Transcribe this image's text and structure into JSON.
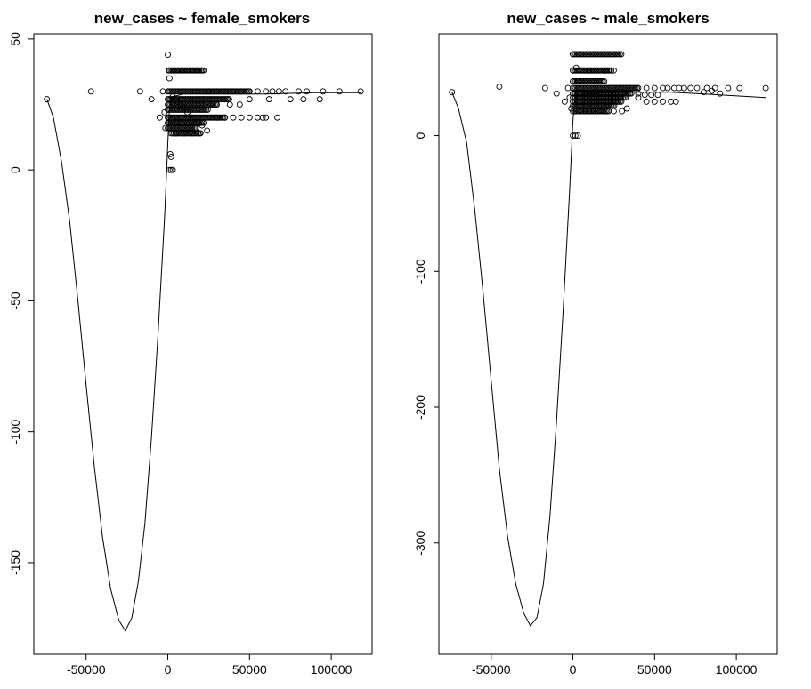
{
  "chart_data": [
    {
      "type": "scatter",
      "title": "new_cases ~ female_smokers",
      "xlabel": "",
      "ylabel": "",
      "xlim": [
        -82000,
        125000
      ],
      "ylim": [
        -185,
        52
      ],
      "xticks": [
        -50000,
        0,
        50000,
        100000
      ],
      "xtick_labels": [
        "-50000",
        "0",
        "50000",
        "100000"
      ],
      "yticks": [
        50,
        0,
        -50,
        -100,
        -150
      ],
      "ytick_labels": [
        "50",
        "0",
        "-50",
        "-100",
        "-150"
      ],
      "grid": false,
      "legend": "none",
      "points": [
        [
          -74000,
          27
        ],
        [
          -47000,
          30
        ],
        [
          -17000,
          30
        ],
        [
          -10000,
          27
        ],
        [
          -5000,
          20
        ],
        [
          -3000,
          30
        ],
        [
          -2000,
          22
        ],
        [
          -1500,
          16
        ],
        [
          0,
          44
        ],
        [
          500,
          38
        ],
        [
          1000,
          35
        ],
        [
          1500,
          6
        ],
        [
          2000,
          5
        ],
        [
          1000,
          0
        ],
        [
          2000,
          0
        ],
        [
          3000,
          0
        ],
        [
          3000,
          38
        ],
        [
          6000,
          38
        ],
        [
          9000,
          38
        ],
        [
          12000,
          38
        ],
        [
          15000,
          38
        ],
        [
          18000,
          38
        ],
        [
          21000,
          38
        ],
        [
          25000,
          30
        ],
        [
          30000,
          30
        ],
        [
          35000,
          30
        ],
        [
          40000,
          30
        ],
        [
          45000,
          30
        ],
        [
          50000,
          30
        ],
        [
          55000,
          30
        ],
        [
          60000,
          30
        ],
        [
          64000,
          30
        ],
        [
          68000,
          30
        ],
        [
          72000,
          30
        ],
        [
          80000,
          30
        ],
        [
          85000,
          30
        ],
        [
          95000,
          30
        ],
        [
          105000,
          30
        ],
        [
          118000,
          30
        ],
        [
          62000,
          27
        ],
        [
          75000,
          27
        ],
        [
          83000,
          27
        ],
        [
          93000,
          27
        ],
        [
          30000,
          25
        ],
        [
          38000,
          25
        ],
        [
          44000,
          25
        ],
        [
          50000,
          27
        ],
        [
          30000,
          20
        ],
        [
          35000,
          20
        ],
        [
          40000,
          20
        ],
        [
          45000,
          20
        ],
        [
          50000,
          20
        ],
        [
          55000,
          20
        ],
        [
          58000,
          20
        ],
        [
          60000,
          20
        ],
        [
          67000,
          20
        ],
        [
          3000,
          28
        ],
        [
          6000,
          26
        ],
        [
          9000,
          24
        ],
        [
          12000,
          22
        ],
        [
          15000,
          20
        ],
        [
          18000,
          18
        ],
        [
          21000,
          17
        ],
        [
          24000,
          15
        ],
        [
          5000,
          14
        ],
        [
          10000,
          14
        ],
        [
          15000,
          14
        ],
        [
          20000,
          14
        ]
      ],
      "dense_bands": [
        {
          "y": 30,
          "x_from": 0,
          "x_to": 50000
        },
        {
          "y": 27,
          "x_from": 0,
          "x_to": 38000
        },
        {
          "y": 25,
          "x_from": 0,
          "x_to": 30000
        },
        {
          "y": 23,
          "x_from": 0,
          "x_to": 25000
        },
        {
          "y": 20,
          "x_from": 0,
          "x_to": 35000
        },
        {
          "y": 18,
          "x_from": 0,
          "x_to": 22000
        },
        {
          "y": 16,
          "x_from": 0,
          "x_to": 18000
        },
        {
          "y": 14,
          "x_from": 2000,
          "x_to": 20000
        },
        {
          "y": 38,
          "x_from": 1000,
          "x_to": 22000
        }
      ],
      "fit_curve": [
        [
          -74000,
          27
        ],
        [
          -70000,
          20
        ],
        [
          -65000,
          3
        ],
        [
          -60000,
          -20
        ],
        [
          -55000,
          -50
        ],
        [
          -50000,
          -82
        ],
        [
          -45000,
          -113
        ],
        [
          -40000,
          -140
        ],
        [
          -35000,
          -160
        ],
        [
          -30000,
          -172
        ],
        [
          -26000,
          -176
        ],
        [
          -22000,
          -171
        ],
        [
          -18000,
          -157
        ],
        [
          -14000,
          -135
        ],
        [
          -10000,
          -102
        ],
        [
          -6000,
          -63
        ],
        [
          -2000,
          -18
        ],
        [
          0,
          10
        ],
        [
          1000,
          24
        ],
        [
          3000,
          28
        ],
        [
          10000,
          29
        ],
        [
          30000,
          29
        ],
        [
          60000,
          29
        ],
        [
          90000,
          29.5
        ],
        [
          118000,
          29.5
        ]
      ]
    },
    {
      "type": "scatter",
      "title": "new_cases ~ male_smokers",
      "xlabel": "",
      "ylabel": "",
      "xlim": [
        -82000,
        125000
      ],
      "ylim": [
        -382,
        75
      ],
      "xticks": [
        -50000,
        0,
        50000,
        100000
      ],
      "xtick_labels": [
        "-50000",
        "0",
        "50000",
        "100000"
      ],
      "yticks": [
        0,
        -100,
        -200,
        -300
      ],
      "ytick_labels": [
        "0",
        "-100",
        "-200",
        "-300"
      ],
      "grid": false,
      "legend": "none",
      "points": [
        [
          -74000,
          32
        ],
        [
          -45000,
          36
        ],
        [
          -17000,
          35
        ],
        [
          -10000,
          31
        ],
        [
          -5000,
          25
        ],
        [
          -3000,
          35
        ],
        [
          -2000,
          28
        ],
        [
          -1000,
          20
        ],
        [
          0,
          60
        ],
        [
          0,
          0
        ],
        [
          1500,
          0
        ],
        [
          3000,
          0
        ],
        [
          2000,
          50
        ],
        [
          3000,
          40
        ],
        [
          40000,
          35
        ],
        [
          45000,
          35
        ],
        [
          50000,
          35
        ],
        [
          55000,
          35
        ],
        [
          58000,
          35
        ],
        [
          62000,
          35
        ],
        [
          65000,
          35
        ],
        [
          68000,
          35
        ],
        [
          72000,
          35
        ],
        [
          76000,
          35
        ],
        [
          82000,
          35
        ],
        [
          87000,
          35
        ],
        [
          95000,
          35
        ],
        [
          102000,
          35
        ],
        [
          118000,
          35
        ],
        [
          80000,
          32
        ],
        [
          85000,
          33
        ],
        [
          90000,
          31
        ],
        [
          40000,
          28
        ],
        [
          45000,
          25
        ],
        [
          50000,
          25
        ],
        [
          55000,
          25
        ],
        [
          60000,
          25
        ],
        [
          63000,
          25
        ],
        [
          40000,
          31
        ],
        [
          44000,
          30
        ],
        [
          48000,
          30
        ],
        [
          52000,
          30
        ],
        [
          10000,
          48
        ],
        [
          20000,
          48
        ],
        [
          25000,
          48
        ],
        [
          5000,
          18
        ],
        [
          10000,
          18
        ],
        [
          15000,
          18
        ],
        [
          20000,
          18
        ],
        [
          25000,
          18
        ],
        [
          30000,
          18
        ],
        [
          33000,
          20
        ]
      ],
      "dense_bands": [
        {
          "y": 60,
          "x_from": 0,
          "x_to": 30000
        },
        {
          "y": 48,
          "x_from": 0,
          "x_to": 24000
        },
        {
          "y": 40,
          "x_from": 0,
          "x_to": 20000
        },
        {
          "y": 35,
          "x_from": 0,
          "x_to": 40000
        },
        {
          "y": 31,
          "x_from": 0,
          "x_to": 36000
        },
        {
          "y": 28,
          "x_from": 0,
          "x_to": 33000
        },
        {
          "y": 25,
          "x_from": 0,
          "x_to": 30000
        },
        {
          "y": 22,
          "x_from": 0,
          "x_to": 26000
        },
        {
          "y": 18,
          "x_from": 0,
          "x_to": 22000
        }
      ],
      "fit_curve": [
        [
          -74000,
          32
        ],
        [
          -70000,
          20
        ],
        [
          -65000,
          -5
        ],
        [
          -60000,
          -55
        ],
        [
          -55000,
          -115
        ],
        [
          -50000,
          -180
        ],
        [
          -45000,
          -245
        ],
        [
          -40000,
          -295
        ],
        [
          -35000,
          -330
        ],
        [
          -30000,
          -352
        ],
        [
          -26000,
          -361
        ],
        [
          -22000,
          -355
        ],
        [
          -18000,
          -330
        ],
        [
          -14000,
          -280
        ],
        [
          -10000,
          -210
        ],
        [
          -6000,
          -130
        ],
        [
          -2000,
          -40
        ],
        [
          0,
          10
        ],
        [
          1000,
          25
        ],
        [
          3000,
          30
        ],
        [
          10000,
          31
        ],
        [
          30000,
          32
        ],
        [
          60000,
          32
        ],
        [
          90000,
          30
        ],
        [
          118000,
          28
        ]
      ]
    }
  ]
}
